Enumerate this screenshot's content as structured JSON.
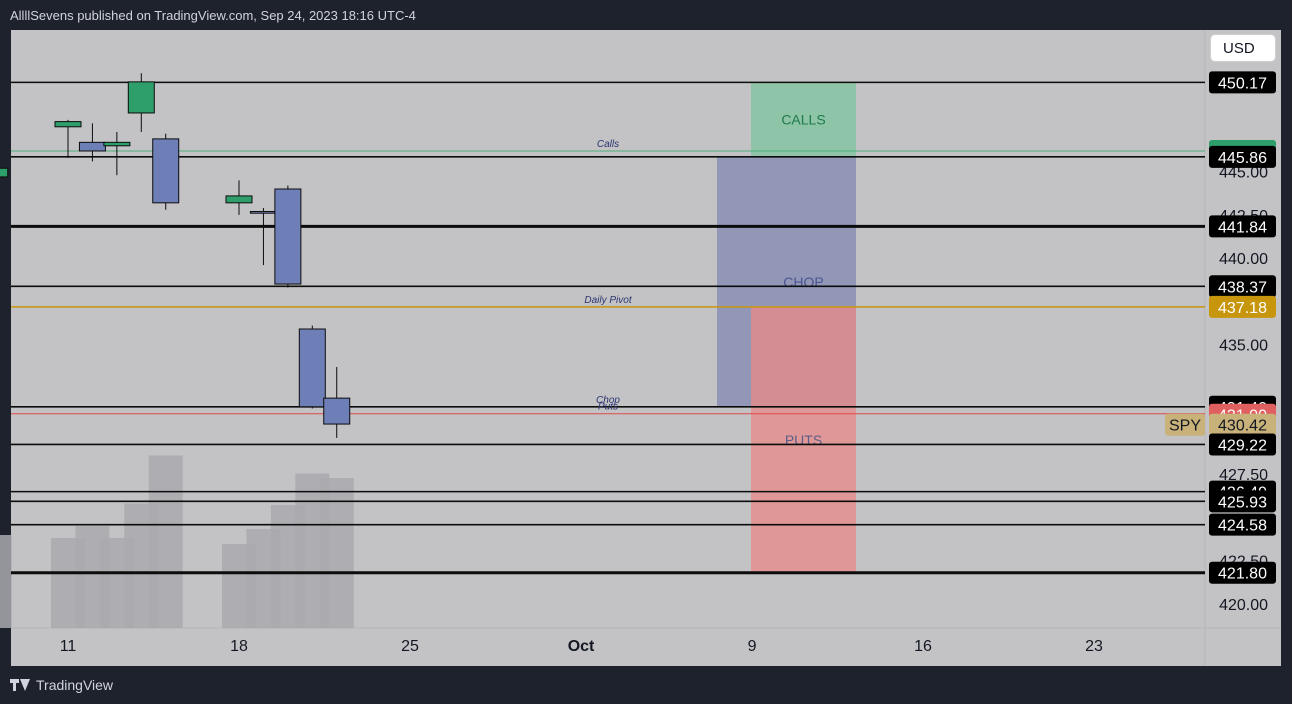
{
  "header": {
    "text": "AllllSevens published on TradingView.com, Sep 24, 2023 18:16 UTC-4"
  },
  "footer": {
    "brand": "TradingView"
  },
  "currency_button": "USD",
  "symbol": "SPY",
  "colors": {
    "bull": "#2e9e6a",
    "bear": "#6e7fb8",
    "pivot": "#c8960c",
    "calls_zone": "#7fc4a0",
    "chop_zone": "#8a8fb4",
    "puts_zone": "#e88a8a",
    "puts_line": "#e04a4a",
    "chart_bg": "#c3c3c5"
  },
  "chart_data": {
    "type": "candlestick",
    "title": "",
    "xlabel": "",
    "ylabel": "",
    "ylim": [
      418.6,
      453.2
    ],
    "x_ticks": [
      "11",
      "18",
      "25",
      "Oct",
      "9",
      "16",
      "23"
    ],
    "y_ticks": [
      "445.00",
      "442.50",
      "440.00",
      "435.00",
      "427.50",
      "422.50",
      "420.00"
    ],
    "candles": [
      {
        "date": "Sep 8",
        "open": 444.7,
        "high": 446.2,
        "low": 444.0,
        "close": 445.2,
        "volume": 0.62
      },
      {
        "date": "Sep 11",
        "open": 447.6,
        "high": 448.0,
        "low": 445.8,
        "close": 447.9,
        "volume": 0.6
      },
      {
        "date": "Sep 12",
        "open": 446.7,
        "high": 447.8,
        "low": 445.6,
        "close": 446.2,
        "volume": 0.68
      },
      {
        "date": "Sep 13",
        "open": 446.5,
        "high": 447.3,
        "low": 444.8,
        "close": 446.7,
        "volume": 0.6
      },
      {
        "date": "Sep 14",
        "open": 448.4,
        "high": 450.7,
        "low": 447.3,
        "close": 450.2,
        "volume": 0.83
      },
      {
        "date": "Sep 15",
        "open": 446.9,
        "high": 447.2,
        "low": 442.8,
        "close": 443.2,
        "volume": 1.15
      },
      {
        "date": "Sep 18",
        "open": 443.2,
        "high": 444.5,
        "low": 442.5,
        "close": 443.6,
        "volume": 0.56
      },
      {
        "date": "Sep 19",
        "open": 442.7,
        "high": 442.9,
        "low": 439.6,
        "close": 442.6,
        "volume": 0.66
      },
      {
        "date": "Sep 20",
        "open": 444.0,
        "high": 444.2,
        "low": 438.3,
        "close": 438.5,
        "volume": 0.82
      },
      {
        "date": "Sep 21",
        "open": 435.9,
        "high": 436.1,
        "low": 431.3,
        "close": 431.4,
        "volume": 1.03
      },
      {
        "date": "Sep 22",
        "open": 431.9,
        "high": 433.7,
        "low": 429.6,
        "close": 430.4,
        "volume": 1.0
      }
    ],
    "levels": [
      {
        "value": 450.17,
        "label": "450.17",
        "style": "black",
        "note": ""
      },
      {
        "value": 446.2,
        "label": "446.20",
        "style": "green",
        "note": "Calls"
      },
      {
        "value": 445.86,
        "label": "445.86",
        "style": "black",
        "note": ""
      },
      {
        "value": 441.84,
        "label": "441.84",
        "style": "black-thick",
        "note": ""
      },
      {
        "value": 438.37,
        "label": "438.37",
        "style": "black",
        "note": ""
      },
      {
        "value": 437.18,
        "label": "437.18",
        "style": "pivot",
        "note": "Daily Pivot"
      },
      {
        "value": 431.4,
        "label": "431.40",
        "style": "black",
        "note": "Chop"
      },
      {
        "value": 431.0,
        "label": "431.00",
        "style": "red",
        "note": "Puts"
      },
      {
        "value": 430.42,
        "label": "430.42",
        "style": "price",
        "note": ""
      },
      {
        "value": 429.22,
        "label": "429.22",
        "style": "black",
        "note": ""
      },
      {
        "value": 426.49,
        "label": "426.49",
        "style": "black",
        "note": ""
      },
      {
        "value": 425.93,
        "label": "425.93",
        "style": "black",
        "note": ""
      },
      {
        "value": 424.58,
        "label": "424.58",
        "style": "black",
        "note": ""
      },
      {
        "value": 421.8,
        "label": "421.80",
        "style": "black-thick",
        "note": ""
      }
    ],
    "zones": [
      {
        "label": "CALLS",
        "top": 450.17,
        "bottom": 445.86,
        "kind": "calls"
      },
      {
        "label": "CHOP",
        "top": 445.86,
        "bottom": 431.4,
        "kind": "chop"
      },
      {
        "label": "PUTS",
        "top": 437.18,
        "bottom": 421.8,
        "kind": "puts"
      }
    ]
  }
}
